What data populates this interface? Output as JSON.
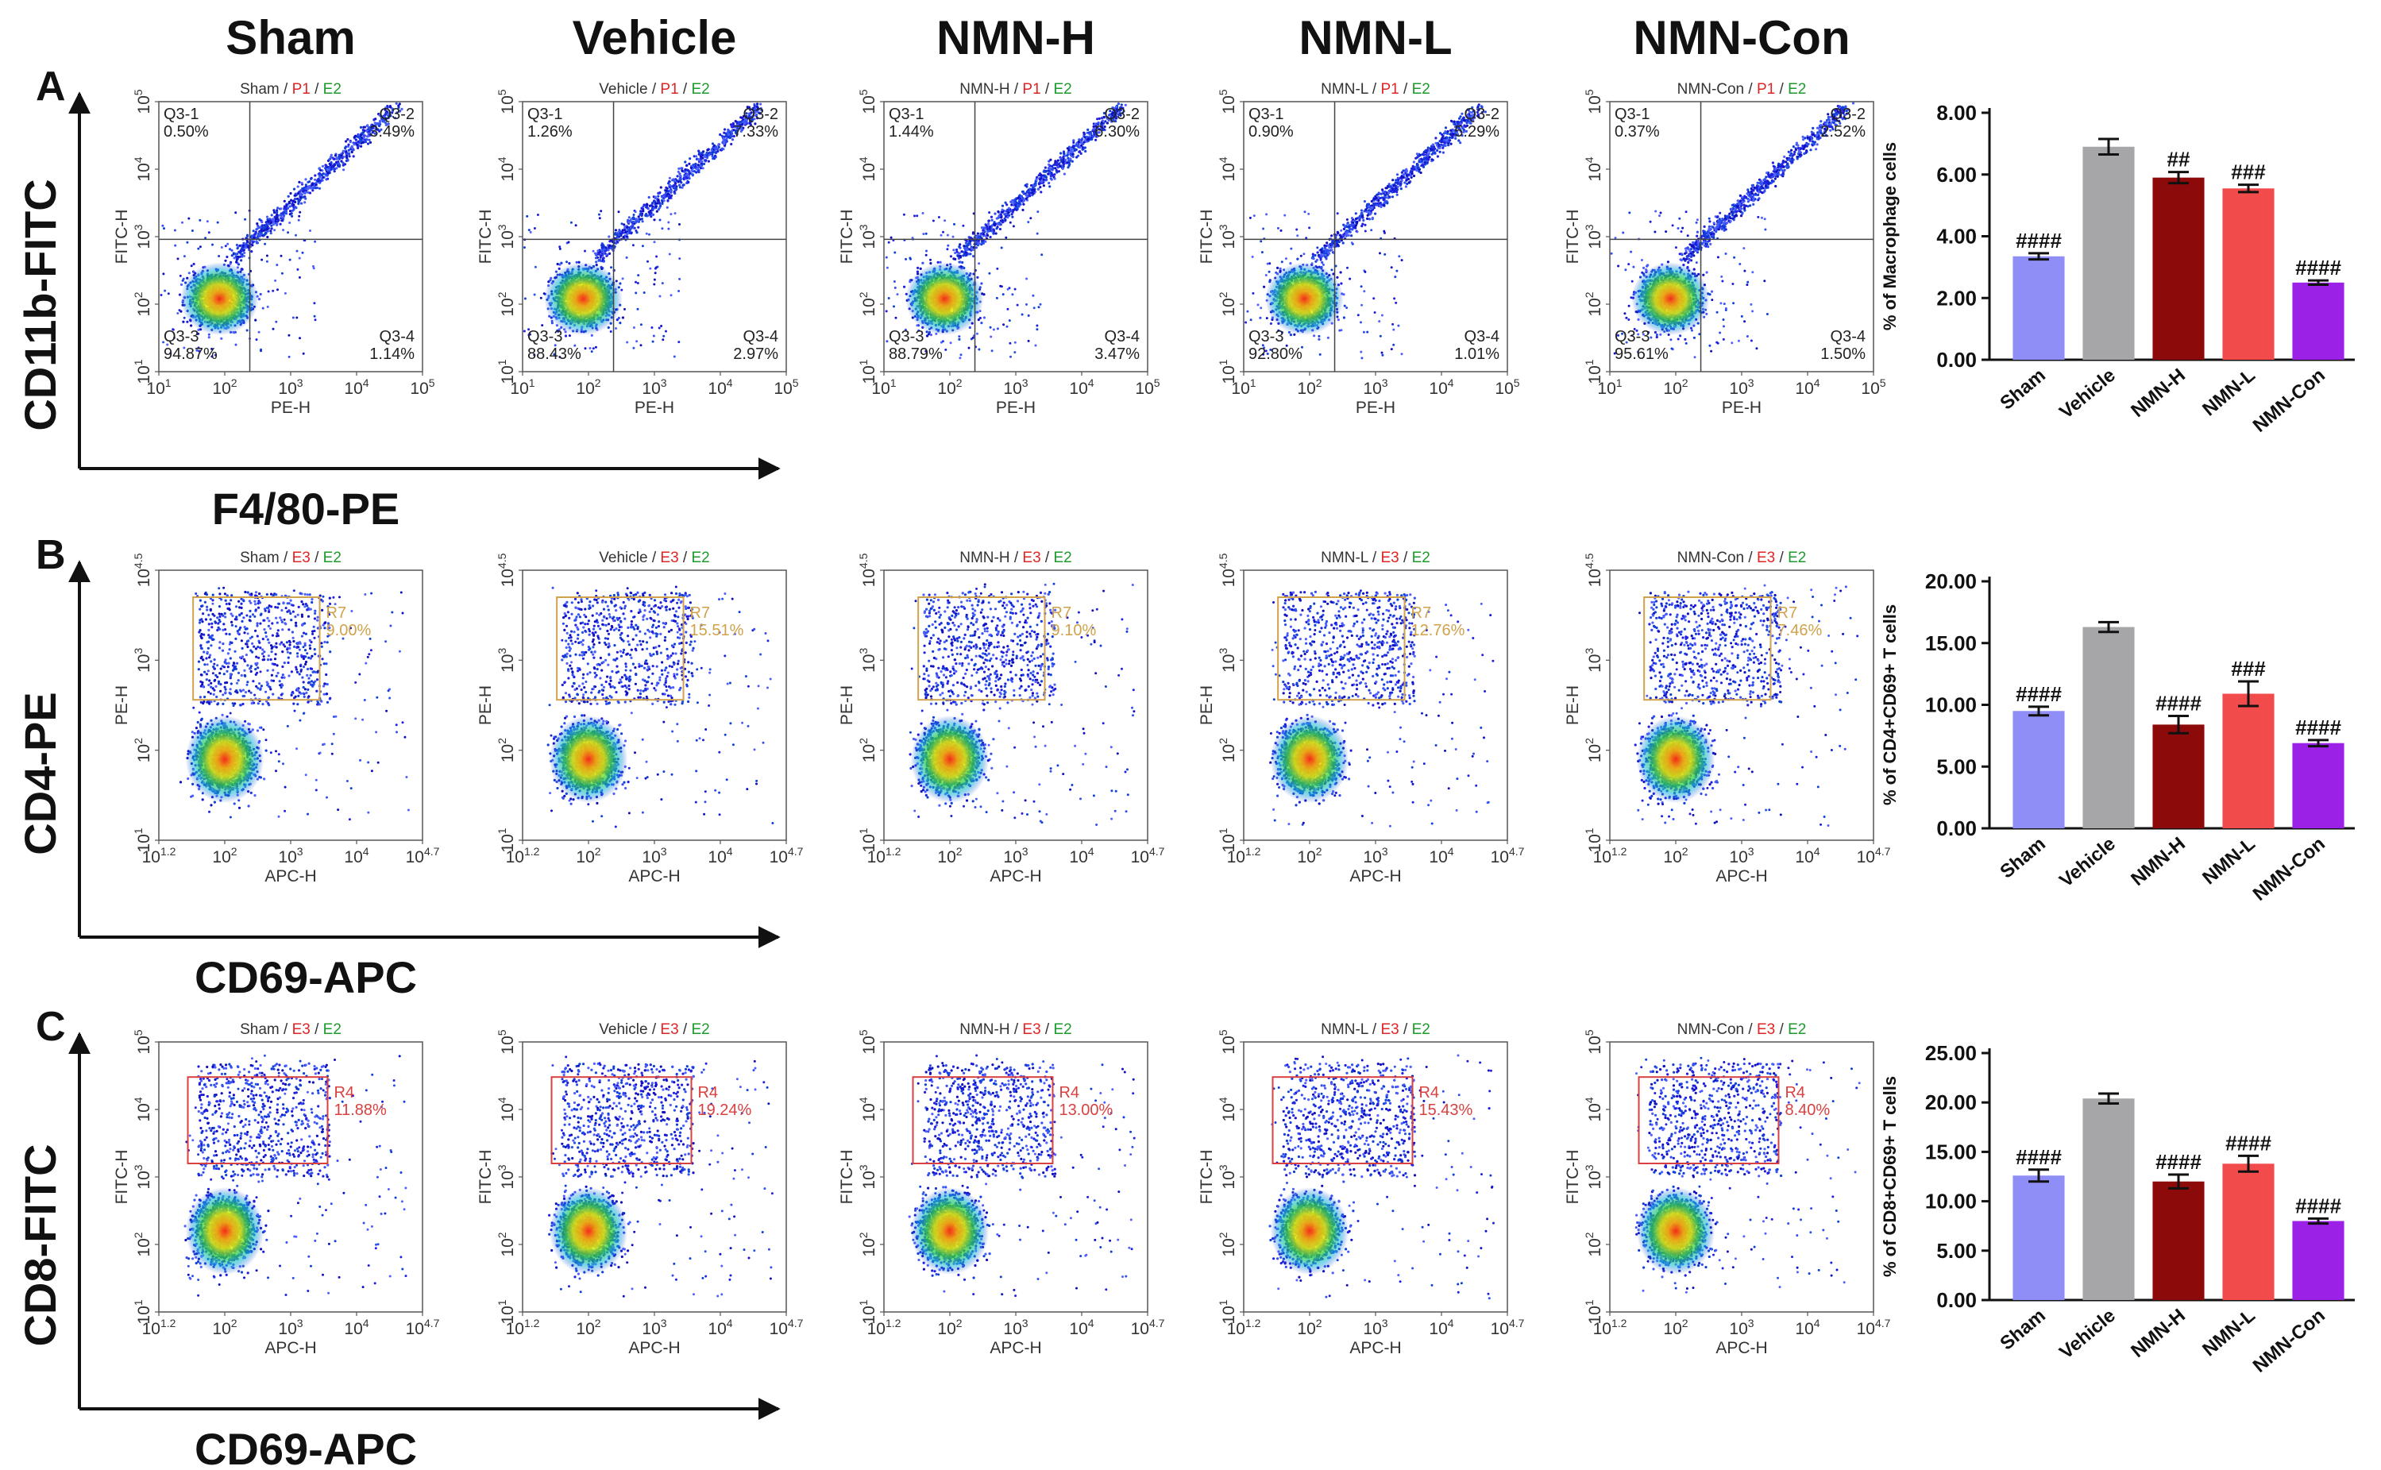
{
  "groups": [
    "Sham",
    "Vehicle",
    "NMN-H",
    "NMN-L",
    "NMN-Con"
  ],
  "colors": {
    "bars": [
      "#8e8ef6",
      "#a6a6a8",
      "#8c0a0a",
      "#f24b4b",
      "#9b21e6"
    ],
    "p1_red": "#e02424",
    "e_green": "#1c9a2c",
    "gate_gold": "#d0a24c",
    "gate_red": "#d94040"
  },
  "panels": [
    {
      "letter": "A",
      "y_marker": "CD11b-FITC",
      "x_marker": "F4/80-PE",
      "plot_xlabel": "PE-H",
      "plot_ylabel": "FITC-H",
      "gate_type": "quadrant",
      "gate_color": "#444444",
      "pop_a": "P1",
      "pop_b": "E2",
      "xticks": [
        {
          "b": "10",
          "e": "1"
        },
        {
          "b": "10",
          "e": "2"
        },
        {
          "b": "10",
          "e": "3"
        },
        {
          "b": "10",
          "e": "4"
        },
        {
          "b": "10",
          "e": "5"
        }
      ],
      "yticks": [
        {
          "b": "10",
          "e": "1"
        },
        {
          "b": "10",
          "e": "2"
        },
        {
          "b": "10",
          "e": "3"
        },
        {
          "b": "10",
          "e": "4"
        },
        {
          "b": "10",
          "e": "5"
        }
      ],
      "plots": [
        {
          "title": "Sham",
          "q1": "0.50%",
          "q2": "3.49%",
          "q3": "94.87%",
          "q4": "1.14%"
        },
        {
          "title": "Vehicle",
          "q1": "1.26%",
          "q2": "7.33%",
          "q3": "88.43%",
          "q4": "2.97%"
        },
        {
          "title": "NMN-H",
          "q1": "1.44%",
          "q2": "6.30%",
          "q3": "88.79%",
          "q4": "3.47%"
        },
        {
          "title": "NMN-L",
          "q1": "0.90%",
          "q2": "5.29%",
          "q3": "92.80%",
          "q4": "1.01%"
        },
        {
          "title": "NMN-Con",
          "q1": "0.37%",
          "q2": "2.52%",
          "q3": "95.61%",
          "q4": "1.50%"
        }
      ],
      "quadrant_names": [
        "Q3-1",
        "Q3-2",
        "Q3-3",
        "Q3-4"
      ],
      "gate_name": ""
    },
    {
      "letter": "B",
      "y_marker": "CD4-PE",
      "x_marker": "CD69-APC",
      "plot_xlabel": "APC-H",
      "plot_ylabel": "PE-H",
      "gate_type": "rect",
      "gate_color": "#d0a24c",
      "pop_a": "E3",
      "pop_b": "E2",
      "xticks": [
        {
          "b": "10",
          "e": "1.2"
        },
        {
          "b": "10",
          "e": "2"
        },
        {
          "b": "10",
          "e": "3"
        },
        {
          "b": "10",
          "e": "4"
        },
        {
          "b": "10",
          "e": "4.7"
        }
      ],
      "yticks": [
        {
          "b": "10",
          "e": "1"
        },
        {
          "b": "10",
          "e": "2"
        },
        {
          "b": "10",
          "e": "3"
        },
        {
          "b": "10",
          "e": "4.5"
        }
      ],
      "plots": [
        {
          "title": "Sham",
          "gate_value": "9.00%"
        },
        {
          "title": "Vehicle",
          "gate_value": "15.51%"
        },
        {
          "title": "NMN-H",
          "gate_value": "9.10%"
        },
        {
          "title": "NMN-L",
          "gate_value": "12.76%"
        },
        {
          "title": "NMN-Con",
          "gate_value": "7.46%"
        }
      ],
      "gate_name": "R7"
    },
    {
      "letter": "C",
      "y_marker": "CD8-FITC",
      "x_marker": "CD69-APC",
      "plot_xlabel": "APC-H",
      "plot_ylabel": "FITC-H",
      "gate_type": "rect",
      "gate_color": "#d94040",
      "pop_a": "E3",
      "pop_b": "E2",
      "xticks": [
        {
          "b": "10",
          "e": "1.2"
        },
        {
          "b": "10",
          "e": "2"
        },
        {
          "b": "10",
          "e": "3"
        },
        {
          "b": "10",
          "e": "4"
        },
        {
          "b": "10",
          "e": "4.7"
        }
      ],
      "yticks": [
        {
          "b": "10",
          "e": "1"
        },
        {
          "b": "10",
          "e": "2"
        },
        {
          "b": "10",
          "e": "3"
        },
        {
          "b": "10",
          "e": "4"
        },
        {
          "b": "10",
          "e": "5"
        }
      ],
      "plots": [
        {
          "title": "Sham",
          "gate_value": "11.88%"
        },
        {
          "title": "Vehicle",
          "gate_value": "19.24%"
        },
        {
          "title": "NMN-H",
          "gate_value": "13.00%"
        },
        {
          "title": "NMN-L",
          "gate_value": "15.43%"
        },
        {
          "title": "NMN-Con",
          "gate_value": "8.40%"
        }
      ],
      "gate_name": "R4"
    }
  ],
  "chart_data": [
    {
      "type": "bar",
      "panel": "A",
      "title": "",
      "xlabel": "",
      "ylabel": "% of Macrophage cells",
      "categories": [
        "Sham",
        "Vehicle",
        "NMN-H",
        "NMN-L",
        "NMN-Con"
      ],
      "values": [
        3.35,
        6.9,
        5.9,
        5.55,
        2.5
      ],
      "errors": [
        0.1,
        0.25,
        0.18,
        0.12,
        0.07
      ],
      "significance": [
        "####",
        "",
        "##",
        "###",
        "####"
      ],
      "ylim": [
        0,
        8
      ],
      "ytick_labels": [
        "0.00",
        "2.00",
        "4.00",
        "6.00",
        "8.00"
      ]
    },
    {
      "type": "bar",
      "panel": "B",
      "title": "",
      "xlabel": "",
      "ylabel": "% of CD4+CD69+ T cells",
      "categories": [
        "Sham",
        "Vehicle",
        "NMN-H",
        "NMN-L",
        "NMN-Con"
      ],
      "values": [
        9.5,
        16.3,
        8.4,
        10.9,
        6.9
      ],
      "errors": [
        0.35,
        0.4,
        0.7,
        1.0,
        0.25
      ],
      "significance": [
        "####",
        "",
        "####",
        "###",
        "####"
      ],
      "ylim": [
        0,
        20
      ],
      "ytick_labels": [
        "0.00",
        "5.00",
        "10.00",
        "15.00",
        "20.00"
      ]
    },
    {
      "type": "bar",
      "panel": "C",
      "title": "",
      "xlabel": "",
      "ylabel": "% of CD8+CD69+ T cells",
      "categories": [
        "Sham",
        "Vehicle",
        "NMN-H",
        "NMN-L",
        "NMN-Con"
      ],
      "values": [
        12.6,
        20.4,
        12.0,
        13.8,
        8.0
      ],
      "errors": [
        0.6,
        0.5,
        0.7,
        0.8,
        0.25
      ],
      "significance": [
        "####",
        "",
        "####",
        "####",
        "####"
      ],
      "ylim": [
        0,
        25
      ],
      "ytick_labels": [
        "0.00",
        "5.00",
        "10.00",
        "15.00",
        "20.00",
        "25.00"
      ]
    }
  ]
}
